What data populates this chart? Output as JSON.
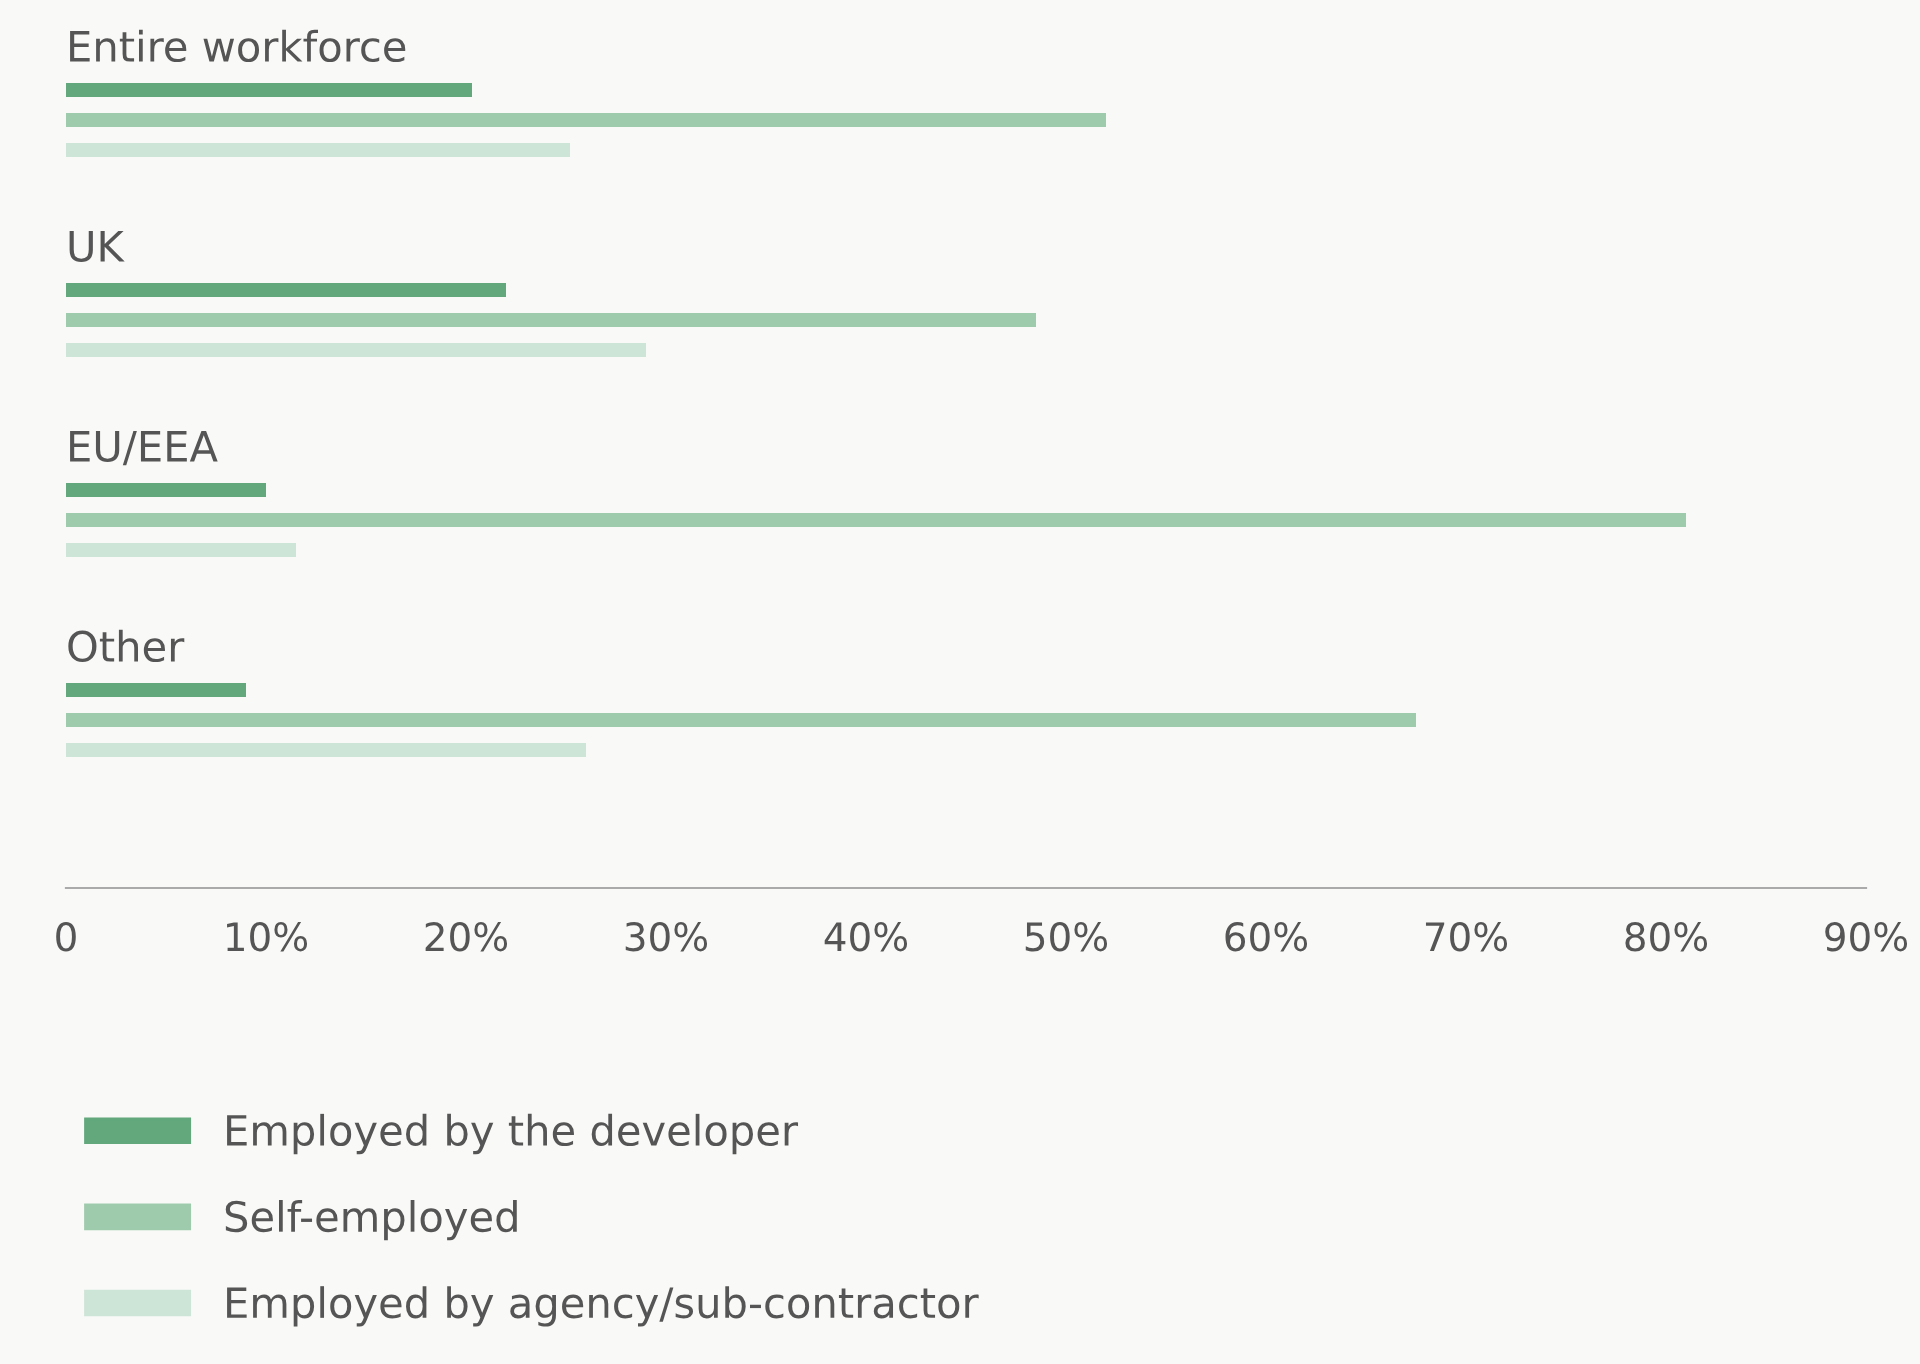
{
  "chart_data": {
    "type": "bar",
    "orientation": "horizontal",
    "categories": [
      "Entire workforce",
      "UK",
      "EU/EEA",
      "Other"
    ],
    "series": [
      {
        "name": "Employed by the developer",
        "color": "#62a87c",
        "values": [
          20.3,
          22,
          10,
          9
        ]
      },
      {
        "name": "Self-employed",
        "color": "#9fcbad",
        "values": [
          52,
          48.5,
          81,
          67.5
        ]
      },
      {
        "name": "Employed by agency/sub-contractor",
        "color": "#cde5d6",
        "values": [
          25.2,
          29,
          11.5,
          26
        ]
      }
    ],
    "xlim": [
      0,
      90
    ],
    "xticks": [
      0,
      {
        "value": 10,
        "label": "10%"
      },
      {
        "value": 20,
        "label": "20%"
      },
      {
        "value": 30,
        "label": "30%"
      },
      {
        "value": 40,
        "label": "40%"
      },
      {
        "value": 50,
        "label": "50%"
      },
      {
        "value": 60,
        "label": "60%"
      },
      {
        "value": 70,
        "label": "70%"
      },
      {
        "value": 80,
        "label": "80%"
      },
      {
        "value": 90,
        "label": "90%"
      }
    ],
    "grid": false,
    "legend": "bottom"
  }
}
